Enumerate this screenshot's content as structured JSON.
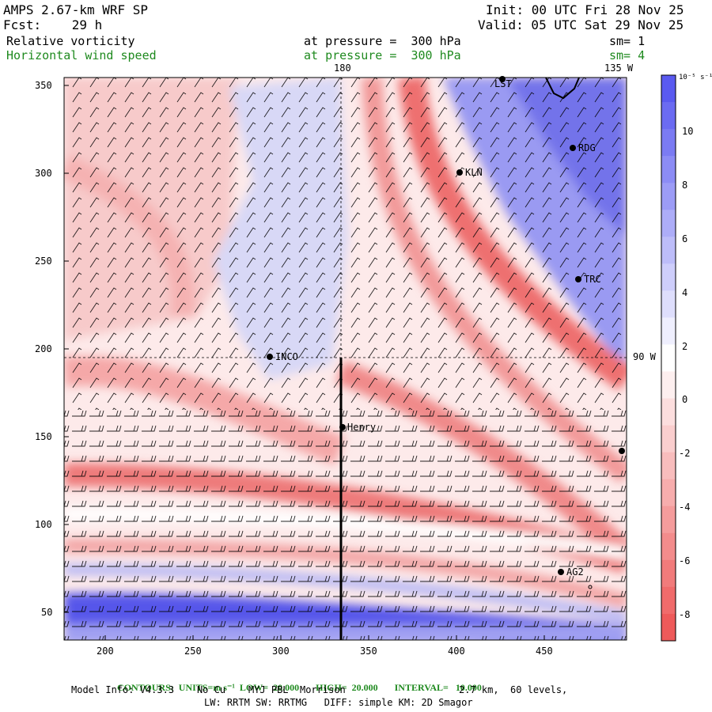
{
  "header": {
    "model": "AMPS 2.67-km WRF SP",
    "forecast": "Fcst:    29 h",
    "init": "Init: 00 UTC Fri 28 Nov 25",
    "valid": "Valid: 05 UTC Sat 29 Nov 25",
    "field1": {
      "name": "Relative vorticity",
      "level": "at pressure =  300 hPa",
      "sm": "sm= 1"
    },
    "field2": {
      "name": "Horizontal wind speed",
      "level": "at pressure =  300 hPa",
      "sm": "sm= 4"
    }
  },
  "map": {
    "x_ticks": [
      "200",
      "250",
      "300",
      "350",
      "400",
      "450"
    ],
    "y_ticks": [
      "50",
      "100",
      "150",
      "200",
      "250",
      "300",
      "350"
    ],
    "lon_top_labels": [
      "180",
      "135 W"
    ],
    "lon_right_label": "90 W",
    "stations": [
      {
        "id": "LST",
        "label": "LST"
      },
      {
        "id": "RDG",
        "label": "RDG"
      },
      {
        "id": "KLN",
        "label": "KLN"
      },
      {
        "id": "TRC",
        "label": "TRC"
      },
      {
        "id": "INCO",
        "label": "INCO"
      },
      {
        "id": "Henry",
        "label": "Henry"
      },
      {
        "id": "AG2",
        "label": "AG2"
      },
      {
        "id": "edge",
        "label": ""
      }
    ]
  },
  "colorbar": {
    "units": "10⁻⁵ s⁻¹",
    "ticks": [
      "10",
      "8",
      "6",
      "4",
      "2",
      "0",
      "-2",
      "-4",
      "-6",
      "-8"
    ],
    "pos_color": "#5a5af0",
    "neg_color": "#ee5a5a",
    "neutral_color": "#ffffff"
  },
  "footer": {
    "contours_label": "CONTOURS:",
    "units_label": "UNITS=m s⁻¹",
    "low_label": "LOW=  20.000",
    "high_label": "HIGH=  20.000",
    "interval_label": "INTERVAL=   10.000",
    "model_info": "Model Info: V4.3.3    No Cu    MYJ PBL  Morrison",
    "resolution": "2.7 km,  60 levels,",
    "physics": "LW: RRTM SW: RRTMG   DIFF: simple KM: 2D Smagor"
  }
}
